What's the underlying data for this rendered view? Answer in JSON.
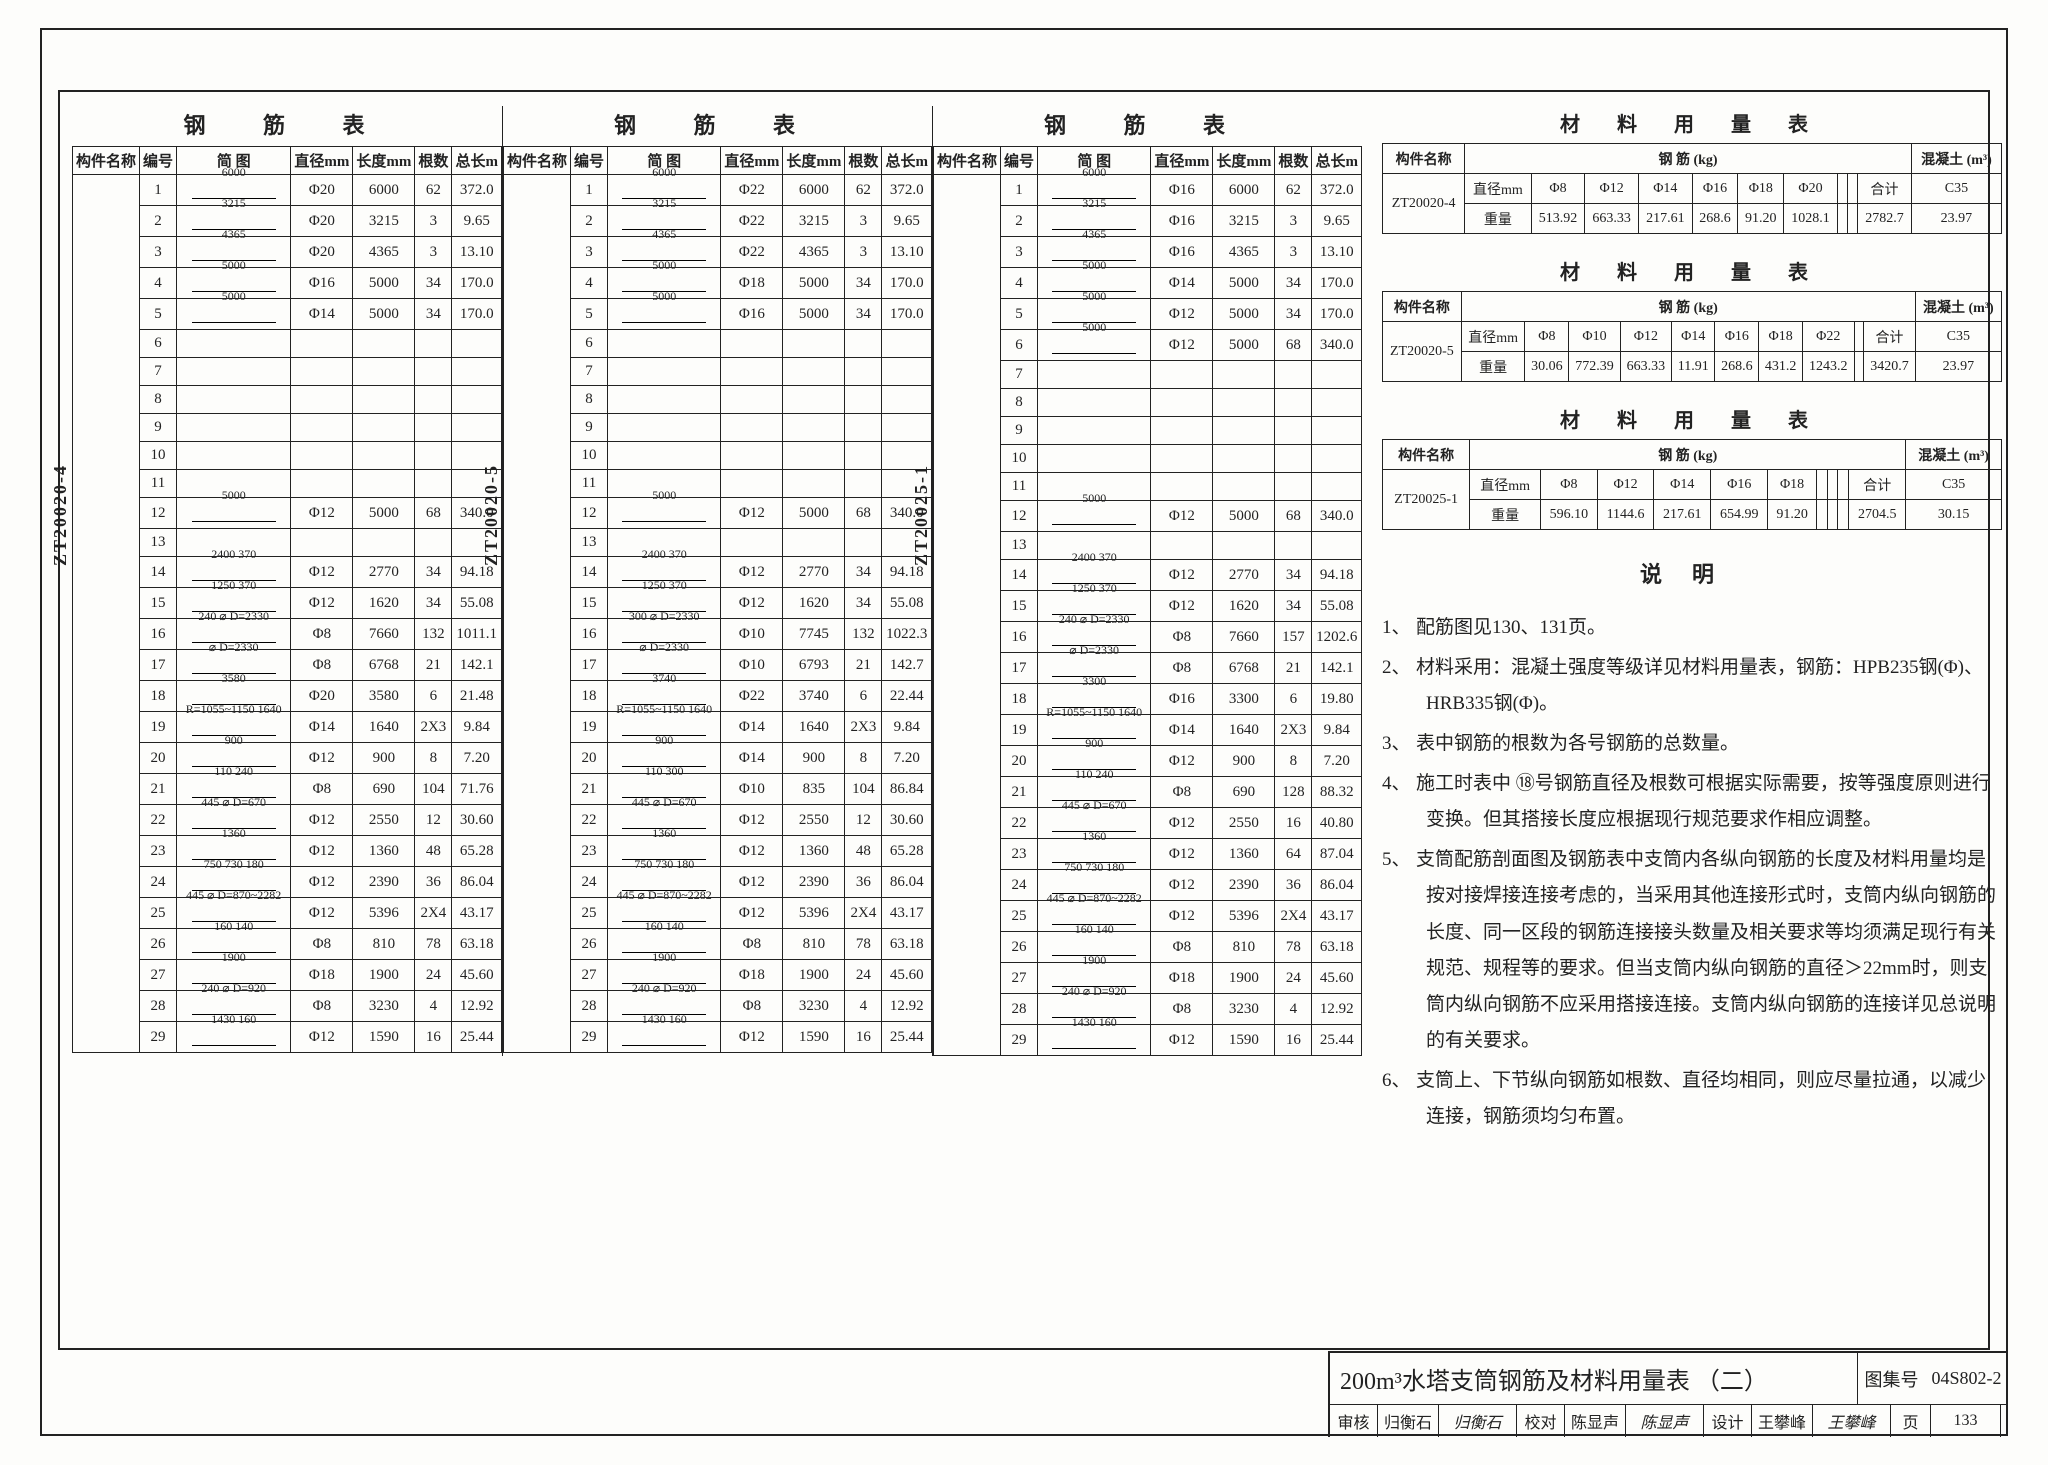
{
  "frame_color": "#222222",
  "bg_color": "#fdfdfb",
  "rebar_table_caption": "钢 筋 表",
  "rebar_headers": {
    "component": "构件名称",
    "index": "编号",
    "sketch": "简 图",
    "diameter": "直径mm",
    "length": "长度mm",
    "count": "根数",
    "total": "总长m"
  },
  "rebar_tables": [
    {
      "component_label": "ZT20020-4",
      "rows": [
        {
          "i": "1",
          "sk": "6000",
          "d": "Φ20",
          "l": "6000",
          "c": "62",
          "t": "372.0"
        },
        {
          "i": "2",
          "sk": "3215",
          "d": "Φ20",
          "l": "3215",
          "c": "3",
          "t": "9.65"
        },
        {
          "i": "3",
          "sk": "4365",
          "d": "Φ20",
          "l": "4365",
          "c": "3",
          "t": "13.10"
        },
        {
          "i": "4",
          "sk": "5000",
          "d": "Φ16",
          "l": "5000",
          "c": "34",
          "t": "170.0"
        },
        {
          "i": "5",
          "sk": "5000",
          "d": "Φ14",
          "l": "5000",
          "c": "34",
          "t": "170.0"
        },
        {
          "i": "6",
          "sk": "",
          "d": "",
          "l": "",
          "c": "",
          "t": ""
        },
        {
          "i": "7",
          "sk": "",
          "d": "",
          "l": "",
          "c": "",
          "t": ""
        },
        {
          "i": "8",
          "sk": "",
          "d": "",
          "l": "",
          "c": "",
          "t": ""
        },
        {
          "i": "9",
          "sk": "",
          "d": "",
          "l": "",
          "c": "",
          "t": ""
        },
        {
          "i": "10",
          "sk": "",
          "d": "",
          "l": "",
          "c": "",
          "t": ""
        },
        {
          "i": "11",
          "sk": "",
          "d": "",
          "l": "",
          "c": "",
          "t": ""
        },
        {
          "i": "12",
          "sk": "5000",
          "d": "Φ12",
          "l": "5000",
          "c": "68",
          "t": "340.0"
        },
        {
          "i": "13",
          "sk": "",
          "d": "",
          "l": "",
          "c": "",
          "t": ""
        },
        {
          "i": "14",
          "sk": "2400  370",
          "d": "Φ12",
          "l": "2770",
          "c": "34",
          "t": "94.18"
        },
        {
          "i": "15",
          "sk": "1250  370",
          "d": "Φ12",
          "l": "1620",
          "c": "34",
          "t": "55.08"
        },
        {
          "i": "16",
          "sk": "240 ⌀ D=2330",
          "d": "Φ8",
          "l": "7660",
          "c": "132",
          "t": "1011.1"
        },
        {
          "i": "17",
          "sk": "⌀ D=2330",
          "d": "Φ8",
          "l": "6768",
          "c": "21",
          "t": "142.1"
        },
        {
          "i": "18",
          "sk": "3580",
          "d": "Φ20",
          "l": "3580",
          "c": "6",
          "t": "21.48"
        },
        {
          "i": "19",
          "sk": "R=1055~1150 1640",
          "d": "Φ14",
          "l": "1640",
          "c": "2X3",
          "t": "9.84"
        },
        {
          "i": "20",
          "sk": "900",
          "d": "Φ12",
          "l": "900",
          "c": "8",
          "t": "7.20"
        },
        {
          "i": "21",
          "sk": "110 240",
          "d": "Φ8",
          "l": "690",
          "c": "104",
          "t": "71.76"
        },
        {
          "i": "22",
          "sk": "445 ⌀ D=670",
          "d": "Φ12",
          "l": "2550",
          "c": "12",
          "t": "30.60"
        },
        {
          "i": "23",
          "sk": "1360",
          "d": "Φ12",
          "l": "1360",
          "c": "48",
          "t": "65.28"
        },
        {
          "i": "24",
          "sk": "750 730 180",
          "d": "Φ12",
          "l": "2390",
          "c": "36",
          "t": "86.04"
        },
        {
          "i": "25",
          "sk": "445 ⌀ D=870~2282",
          "d": "Φ12",
          "l": "5396",
          "c": "2X4",
          "t": "43.17"
        },
        {
          "i": "26",
          "sk": "160 140",
          "d": "Φ8",
          "l": "810",
          "c": "78",
          "t": "63.18"
        },
        {
          "i": "27",
          "sk": "1900",
          "d": "Φ18",
          "l": "1900",
          "c": "24",
          "t": "45.60"
        },
        {
          "i": "28",
          "sk": "240 ⌀ D=920",
          "d": "Φ8",
          "l": "3230",
          "c": "4",
          "t": "12.92"
        },
        {
          "i": "29",
          "sk": "1430 160",
          "d": "Φ12",
          "l": "1590",
          "c": "16",
          "t": "25.44"
        }
      ]
    },
    {
      "component_label": "ZT20020-5",
      "rows": [
        {
          "i": "1",
          "sk": "6000",
          "d": "Φ22",
          "l": "6000",
          "c": "62",
          "t": "372.0"
        },
        {
          "i": "2",
          "sk": "3215",
          "d": "Φ22",
          "l": "3215",
          "c": "3",
          "t": "9.65"
        },
        {
          "i": "3",
          "sk": "4365",
          "d": "Φ22",
          "l": "4365",
          "c": "3",
          "t": "13.10"
        },
        {
          "i": "4",
          "sk": "5000",
          "d": "Φ18",
          "l": "5000",
          "c": "34",
          "t": "170.0"
        },
        {
          "i": "5",
          "sk": "5000",
          "d": "Φ16",
          "l": "5000",
          "c": "34",
          "t": "170.0"
        },
        {
          "i": "6",
          "sk": "",
          "d": "",
          "l": "",
          "c": "",
          "t": ""
        },
        {
          "i": "7",
          "sk": "",
          "d": "",
          "l": "",
          "c": "",
          "t": ""
        },
        {
          "i": "8",
          "sk": "",
          "d": "",
          "l": "",
          "c": "",
          "t": ""
        },
        {
          "i": "9",
          "sk": "",
          "d": "",
          "l": "",
          "c": "",
          "t": ""
        },
        {
          "i": "10",
          "sk": "",
          "d": "",
          "l": "",
          "c": "",
          "t": ""
        },
        {
          "i": "11",
          "sk": "",
          "d": "",
          "l": "",
          "c": "",
          "t": ""
        },
        {
          "i": "12",
          "sk": "5000",
          "d": "Φ12",
          "l": "5000",
          "c": "68",
          "t": "340.0"
        },
        {
          "i": "13",
          "sk": "",
          "d": "",
          "l": "",
          "c": "",
          "t": ""
        },
        {
          "i": "14",
          "sk": "2400  370",
          "d": "Φ12",
          "l": "2770",
          "c": "34",
          "t": "94.18"
        },
        {
          "i": "15",
          "sk": "1250  370",
          "d": "Φ12",
          "l": "1620",
          "c": "34",
          "t": "55.08"
        },
        {
          "i": "16",
          "sk": "300 ⌀ D=2330",
          "d": "Φ10",
          "l": "7745",
          "c": "132",
          "t": "1022.3"
        },
        {
          "i": "17",
          "sk": "⌀ D=2330",
          "d": "Φ10",
          "l": "6793",
          "c": "21",
          "t": "142.7"
        },
        {
          "i": "18",
          "sk": "3740",
          "d": "Φ22",
          "l": "3740",
          "c": "6",
          "t": "22.44"
        },
        {
          "i": "19",
          "sk": "R=1055~1150 1640",
          "d": "Φ14",
          "l": "1640",
          "c": "2X3",
          "t": "9.84"
        },
        {
          "i": "20",
          "sk": "900",
          "d": "Φ14",
          "l": "900",
          "c": "8",
          "t": "7.20"
        },
        {
          "i": "21",
          "sk": "110 300",
          "d": "Φ10",
          "l": "835",
          "c": "104",
          "t": "86.84"
        },
        {
          "i": "22",
          "sk": "445 ⌀ D=670",
          "d": "Φ12",
          "l": "2550",
          "c": "12",
          "t": "30.60"
        },
        {
          "i": "23",
          "sk": "1360",
          "d": "Φ12",
          "l": "1360",
          "c": "48",
          "t": "65.28"
        },
        {
          "i": "24",
          "sk": "750 730 180",
          "d": "Φ12",
          "l": "2390",
          "c": "36",
          "t": "86.04"
        },
        {
          "i": "25",
          "sk": "445 ⌀ D=870~2282",
          "d": "Φ12",
          "l": "5396",
          "c": "2X4",
          "t": "43.17"
        },
        {
          "i": "26",
          "sk": "160 140",
          "d": "Φ8",
          "l": "810",
          "c": "78",
          "t": "63.18"
        },
        {
          "i": "27",
          "sk": "1900",
          "d": "Φ18",
          "l": "1900",
          "c": "24",
          "t": "45.60"
        },
        {
          "i": "28",
          "sk": "240 ⌀ D=920",
          "d": "Φ8",
          "l": "3230",
          "c": "4",
          "t": "12.92"
        },
        {
          "i": "29",
          "sk": "1430 160",
          "d": "Φ12",
          "l": "1590",
          "c": "16",
          "t": "25.44"
        }
      ]
    },
    {
      "component_label": "ZT20025-1",
      "rows": [
        {
          "i": "1",
          "sk": "6000",
          "d": "Φ16",
          "l": "6000",
          "c": "62",
          "t": "372.0"
        },
        {
          "i": "2",
          "sk": "3215",
          "d": "Φ16",
          "l": "3215",
          "c": "3",
          "t": "9.65"
        },
        {
          "i": "3",
          "sk": "4365",
          "d": "Φ16",
          "l": "4365",
          "c": "3",
          "t": "13.10"
        },
        {
          "i": "4",
          "sk": "5000",
          "d": "Φ14",
          "l": "5000",
          "c": "34",
          "t": "170.0"
        },
        {
          "i": "5",
          "sk": "5000",
          "d": "Φ12",
          "l": "5000",
          "c": "34",
          "t": "170.0"
        },
        {
          "i": "6",
          "sk": "5000",
          "d": "Φ12",
          "l": "5000",
          "c": "68",
          "t": "340.0"
        },
        {
          "i": "7",
          "sk": "",
          "d": "",
          "l": "",
          "c": "",
          "t": ""
        },
        {
          "i": "8",
          "sk": "",
          "d": "",
          "l": "",
          "c": "",
          "t": ""
        },
        {
          "i": "9",
          "sk": "",
          "d": "",
          "l": "",
          "c": "",
          "t": ""
        },
        {
          "i": "10",
          "sk": "",
          "d": "",
          "l": "",
          "c": "",
          "t": ""
        },
        {
          "i": "11",
          "sk": "",
          "d": "",
          "l": "",
          "c": "",
          "t": ""
        },
        {
          "i": "12",
          "sk": "5000",
          "d": "Φ12",
          "l": "5000",
          "c": "68",
          "t": "340.0"
        },
        {
          "i": "13",
          "sk": "",
          "d": "",
          "l": "",
          "c": "",
          "t": ""
        },
        {
          "i": "14",
          "sk": "2400  370",
          "d": "Φ12",
          "l": "2770",
          "c": "34",
          "t": "94.18"
        },
        {
          "i": "15",
          "sk": "1250  370",
          "d": "Φ12",
          "l": "1620",
          "c": "34",
          "t": "55.08"
        },
        {
          "i": "16",
          "sk": "240 ⌀ D=2330",
          "d": "Φ8",
          "l": "7660",
          "c": "157",
          "t": "1202.6"
        },
        {
          "i": "17",
          "sk": "⌀ D=2330",
          "d": "Φ8",
          "l": "6768",
          "c": "21",
          "t": "142.1"
        },
        {
          "i": "18",
          "sk": "3300",
          "d": "Φ16",
          "l": "3300",
          "c": "6",
          "t": "19.80"
        },
        {
          "i": "19",
          "sk": "R=1055~1150 1640",
          "d": "Φ14",
          "l": "1640",
          "c": "2X3",
          "t": "9.84"
        },
        {
          "i": "20",
          "sk": "900",
          "d": "Φ12",
          "l": "900",
          "c": "8",
          "t": "7.20"
        },
        {
          "i": "21",
          "sk": "110 240",
          "d": "Φ8",
          "l": "690",
          "c": "128",
          "t": "88.32"
        },
        {
          "i": "22",
          "sk": "445 ⌀ D=670",
          "d": "Φ12",
          "l": "2550",
          "c": "16",
          "t": "40.80"
        },
        {
          "i": "23",
          "sk": "1360",
          "d": "Φ12",
          "l": "1360",
          "c": "64",
          "t": "87.04"
        },
        {
          "i": "24",
          "sk": "750 730 180",
          "d": "Φ12",
          "l": "2390",
          "c": "36",
          "t": "86.04"
        },
        {
          "i": "25",
          "sk": "445 ⌀ D=870~2282",
          "d": "Φ12",
          "l": "5396",
          "c": "2X4",
          "t": "43.17"
        },
        {
          "i": "26",
          "sk": "160 140",
          "d": "Φ8",
          "l": "810",
          "c": "78",
          "t": "63.18"
        },
        {
          "i": "27",
          "sk": "1900",
          "d": "Φ18",
          "l": "1900",
          "c": "24",
          "t": "45.60"
        },
        {
          "i": "28",
          "sk": "240 ⌀ D=920",
          "d": "Φ8",
          "l": "3230",
          "c": "4",
          "t": "12.92"
        },
        {
          "i": "29",
          "sk": "1430 160",
          "d": "Φ12",
          "l": "1590",
          "c": "16",
          "t": "25.44"
        }
      ]
    }
  ],
  "material_table_caption": "材 料 用 量 表",
  "material_headers": {
    "component": "构件名称",
    "steel": "钢 筋 (kg)",
    "concrete": "混凝土 (m³)",
    "diameter_row": "直径mm",
    "weight_row": "重量",
    "total": "合计"
  },
  "material_tables": [
    {
      "component": "ZT20020-4",
      "dia_labels": [
        "Φ8",
        "Φ12",
        "Φ14",
        "Φ16",
        "Φ18",
        "Φ20",
        "",
        ""
      ],
      "weights": [
        "513.92",
        "663.33",
        "217.61",
        "268.6",
        "91.20",
        "1028.1",
        "",
        ""
      ],
      "total": "2782.7",
      "concrete_grade": "C35",
      "concrete_vol": "23.97"
    },
    {
      "component": "ZT20020-5",
      "dia_labels": [
        "Φ8",
        "Φ10",
        "Φ12",
        "Φ14",
        "Φ16",
        "Φ18",
        "Φ22",
        ""
      ],
      "weights": [
        "30.06",
        "772.39",
        "663.33",
        "11.91",
        "268.6",
        "431.2",
        "1243.2",
        ""
      ],
      "total": "3420.7",
      "concrete_grade": "C35",
      "concrete_vol": "23.97"
    },
    {
      "component": "ZT20025-1",
      "dia_labels": [
        "Φ8",
        "Φ12",
        "Φ14",
        "Φ16",
        "Φ18",
        "",
        "",
        ""
      ],
      "weights": [
        "596.10",
        "1144.6",
        "217.61",
        "654.99",
        "91.20",
        "",
        "",
        ""
      ],
      "total": "2704.5",
      "concrete_grade": "C35",
      "concrete_vol": "30.15"
    }
  ],
  "notes_title": "说明",
  "notes": [
    "配筋图见130、131页。",
    "材料采用：混凝土强度等级详见材料用量表，钢筋：HPB235钢(Φ)、HRB335钢(Φ)。",
    "表中钢筋的根数为各号钢筋的总数量。",
    "施工时表中 ⑱号钢筋直径及根数可根据实际需要，按等强度原则进行变换。但其搭接长度应根据现行规范要求作相应调整。",
    "支筒配筋剖面图及钢筋表中支筒内各纵向钢筋的长度及材料用量均是按对接焊接连接考虑的，当采用其他连接形式时，支筒内纵向钢筋的长度、同一区段的钢筋连接接头数量及相关要求等均须满足现行有关规范、规程等的要求。但当支筒内纵向钢筋的直径＞22mm时，则支筒内纵向钢筋不应采用搭接连接。支筒内纵向钢筋的连接详见总说明的有关要求。",
    "支筒上、下节纵向钢筋如根数、直径均相同，则应尽量拉通，以减少连接，钢筋须均匀布置。"
  ],
  "title_block": {
    "main_title": "200m³水塔支筒钢筋及材料用量表 （二）",
    "set_label": "图集号",
    "set_number": "04S802-2",
    "review_label": "审核",
    "reviewer": "归衡石",
    "review_sig": "归衡石",
    "check_label": "校对",
    "checker": "陈显声",
    "check_sig": "陈显声",
    "design_label": "设计",
    "designer": "王攀峰",
    "design_sig": "王攀峰",
    "page_label": "页",
    "page_number": "133"
  }
}
